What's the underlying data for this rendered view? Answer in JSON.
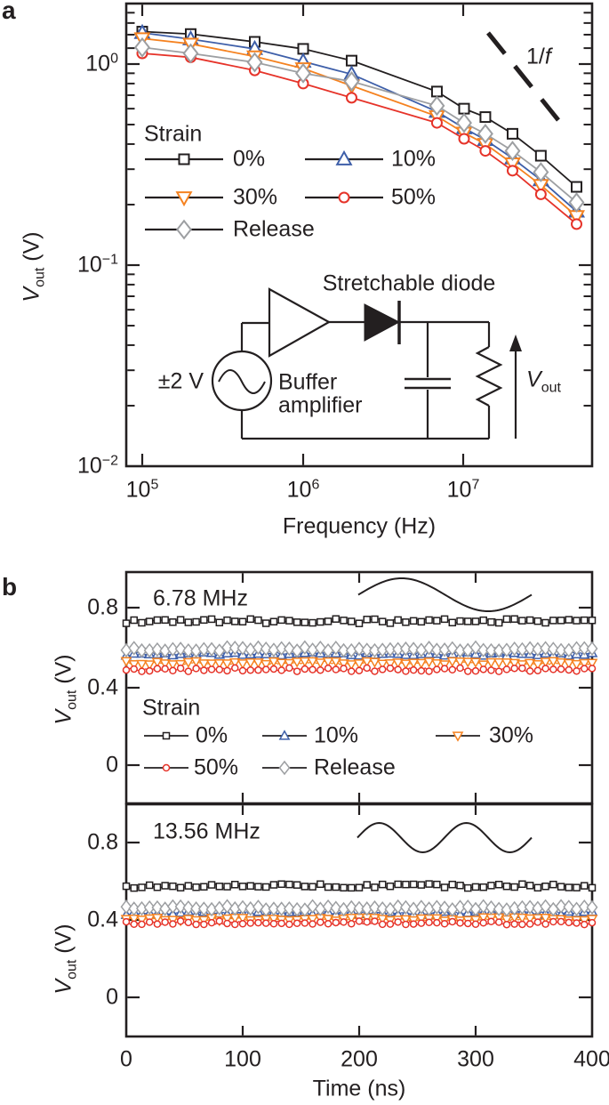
{
  "colors": {
    "text": "#231f20",
    "frame": "#231f20",
    "background": "#ffffff",
    "series_0pct": "#231f20",
    "series_10pct": "#3e5fa9",
    "series_30pct": "#f58220",
    "series_50pct": "#e63329",
    "series_release": "#9d9fa2"
  },
  "panel_a": {
    "letter": "a",
    "ylabel": {
      "v": "V",
      "sub": "out",
      "rest": " (V)"
    },
    "xlabel": "Frequency (Hz)",
    "yticks": [
      {
        "b": "10",
        "e": "0"
      },
      {
        "b": "10",
        "e": "−1"
      },
      {
        "b": "10",
        "e": "−2"
      }
    ],
    "xticks": [
      {
        "b": "10",
        "e": "5"
      },
      {
        "b": "10",
        "e": "6"
      },
      {
        "b": "10",
        "e": "7"
      }
    ],
    "ref_label": {
      "num": "1/",
      "sym": "f"
    },
    "legend": {
      "title": "Strain",
      "items": [
        "0%",
        "10%",
        "30%",
        "50%",
        "Release"
      ]
    },
    "circuit": {
      "source": "±2 V",
      "amp_line1": "Buffer",
      "amp_line2": "amplifier",
      "diode": "Stretchable diode",
      "vout": {
        "v": "V",
        "sub": "out"
      }
    }
  },
  "panel_b": {
    "letter": "b",
    "top_label": "6.78 MHz",
    "bottom_label": "13.56 MHz",
    "ylabel": {
      "v": "V",
      "sub": "out",
      "rest": " (V)"
    },
    "xlabel": "Time (ns)",
    "yticks": [
      "0.8",
      "0.4",
      "0"
    ],
    "xticks": [
      "0",
      "100",
      "200",
      "300",
      "400"
    ],
    "legend": {
      "title": "Strain",
      "items": [
        "0%",
        "10%",
        "30%",
        "50%",
        "Release"
      ]
    }
  },
  "chart_data": [
    {
      "type": "line",
      "panel": "a",
      "title": "Rectifier output vs frequency under strain",
      "xlabel": "Frequency (Hz)",
      "ylabel": "Vout (V)",
      "xscale": "log",
      "yscale": "log",
      "xlim": [
        80000,
        62000000
      ],
      "ylim": [
        0.01,
        2.0
      ],
      "grid": false,
      "legend_position": "upper-left-inside",
      "x": [
        100000,
        200000,
        500000,
        1000000,
        2000000,
        6780000,
        10000000,
        13560000,
        20000000,
        30000000,
        50000000
      ],
      "series": [
        {
          "name": "0%",
          "color": "#231f20",
          "marker": "square",
          "values": [
            1.45,
            1.41,
            1.29,
            1.19,
            1.04,
            0.73,
            0.6,
            0.545,
            0.45,
            0.35,
            0.245
          ]
        },
        {
          "name": "10%",
          "color": "#3e5fa9",
          "marker": "triangle-up",
          "values": [
            1.43,
            1.33,
            1.19,
            1.03,
            0.89,
            0.58,
            0.48,
            0.42,
            0.34,
            0.265,
            0.185
          ]
        },
        {
          "name": "30%",
          "color": "#f58220",
          "marker": "triangle-down",
          "values": [
            1.34,
            1.26,
            1.09,
            0.95,
            0.78,
            0.55,
            0.455,
            0.4,
            0.32,
            0.25,
            0.175
          ]
        },
        {
          "name": "50%",
          "color": "#e63329",
          "marker": "circle",
          "values": [
            1.13,
            1.08,
            0.93,
            0.8,
            0.68,
            0.51,
            0.425,
            0.37,
            0.295,
            0.225,
            0.16
          ]
        },
        {
          "name": "Release",
          "color": "#9d9fa2",
          "marker": "diamond",
          "values": [
            1.21,
            1.13,
            1.02,
            0.9,
            0.82,
            0.62,
            0.51,
            0.45,
            0.37,
            0.29,
            0.205
          ]
        }
      ],
      "annotations": [
        {
          "text": "1/f",
          "type": "reference-slope",
          "slope_decades_per_decade": -1
        }
      ]
    },
    {
      "type": "line",
      "panel": "b-top",
      "title": "6.78 MHz",
      "xlabel": "Time (ns)",
      "ylabel": "Vout (V)",
      "xlim": [
        0,
        400
      ],
      "ylim": [
        -0.19,
        0.98
      ],
      "n_markers": 61,
      "series": [
        {
          "name": "0%",
          "color": "#231f20",
          "marker": "square",
          "mean_level": 0.732,
          "noise": 0.012
        },
        {
          "name": "10%",
          "color": "#3e5fa9",
          "marker": "triangle-up",
          "mean_level": 0.565,
          "noise": 0.009
        },
        {
          "name": "30%",
          "color": "#f58220",
          "marker": "triangle-down",
          "mean_level": 0.52,
          "noise": 0.009
        },
        {
          "name": "50%",
          "color": "#e63329",
          "marker": "circle",
          "mean_level": 0.485,
          "noise": 0.009
        },
        {
          "name": "Release",
          "color": "#9d9fa2",
          "marker": "diamond",
          "mean_level": 0.59,
          "noise": 0.009
        }
      ]
    },
    {
      "type": "line",
      "panel": "b-bottom",
      "title": "13.56 MHz",
      "xlabel": "Time (ns)",
      "ylabel": "Vout (V)",
      "xlim": [
        0,
        400
      ],
      "ylim": [
        -0.2,
        0.99
      ],
      "n_markers": 61,
      "series": [
        {
          "name": "0%",
          "color": "#231f20",
          "marker": "square",
          "mean_level": 0.575,
          "noise": 0.011
        },
        {
          "name": "10%",
          "color": "#3e5fa9",
          "marker": "triangle-up",
          "mean_level": 0.435,
          "noise": 0.009
        },
        {
          "name": "30%",
          "color": "#f58220",
          "marker": "triangle-down",
          "mean_level": 0.405,
          "noise": 0.009
        },
        {
          "name": "50%",
          "color": "#e63329",
          "marker": "circle",
          "mean_level": 0.385,
          "noise": 0.009
        },
        {
          "name": "Release",
          "color": "#9d9fa2",
          "marker": "diamond",
          "mean_level": 0.462,
          "noise": 0.009
        }
      ]
    }
  ]
}
